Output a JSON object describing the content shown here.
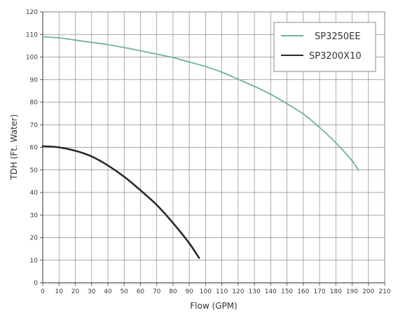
{
  "chart_data": {
    "type": "line",
    "title": "",
    "xlabel": "Flow (GPM)",
    "ylabel": "TDH (Ft. Water)",
    "xlim": [
      0,
      210
    ],
    "ylim": [
      0,
      120
    ],
    "x_ticks": [
      0,
      10,
      20,
      30,
      40,
      50,
      60,
      70,
      80,
      90,
      100,
      110,
      120,
      130,
      140,
      150,
      160,
      170,
      180,
      190,
      200,
      210
    ],
    "y_ticks": [
      0,
      10,
      20,
      30,
      40,
      50,
      60,
      70,
      80,
      90,
      100,
      110,
      120
    ],
    "grid": true,
    "legend_position": "top-right",
    "series": [
      {
        "name": "SP3250EE",
        "color": "#6fb39a",
        "x": [
          0,
          10,
          20,
          30,
          40,
          50,
          60,
          70,
          80,
          90,
          100,
          110,
          120,
          130,
          140,
          150,
          160,
          170,
          180,
          190,
          194
        ],
        "y": [
          109,
          108.5,
          107.5,
          106.5,
          105.5,
          104.2,
          102.8,
          101.3,
          99.8,
          97.8,
          95.8,
          93.3,
          90.2,
          87,
          83.5,
          79.3,
          74.8,
          68.8,
          62,
          54,
          49.8
        ]
      },
      {
        "name": "SP3200X10",
        "color": "#2a2a2a",
        "x": [
          0,
          10,
          20,
          30,
          40,
          50,
          60,
          70,
          80,
          90,
          96
        ],
        "y": [
          60.5,
          60,
          58.5,
          56,
          52,
          47,
          41,
          34.5,
          26.5,
          17.5,
          11
        ]
      }
    ]
  }
}
